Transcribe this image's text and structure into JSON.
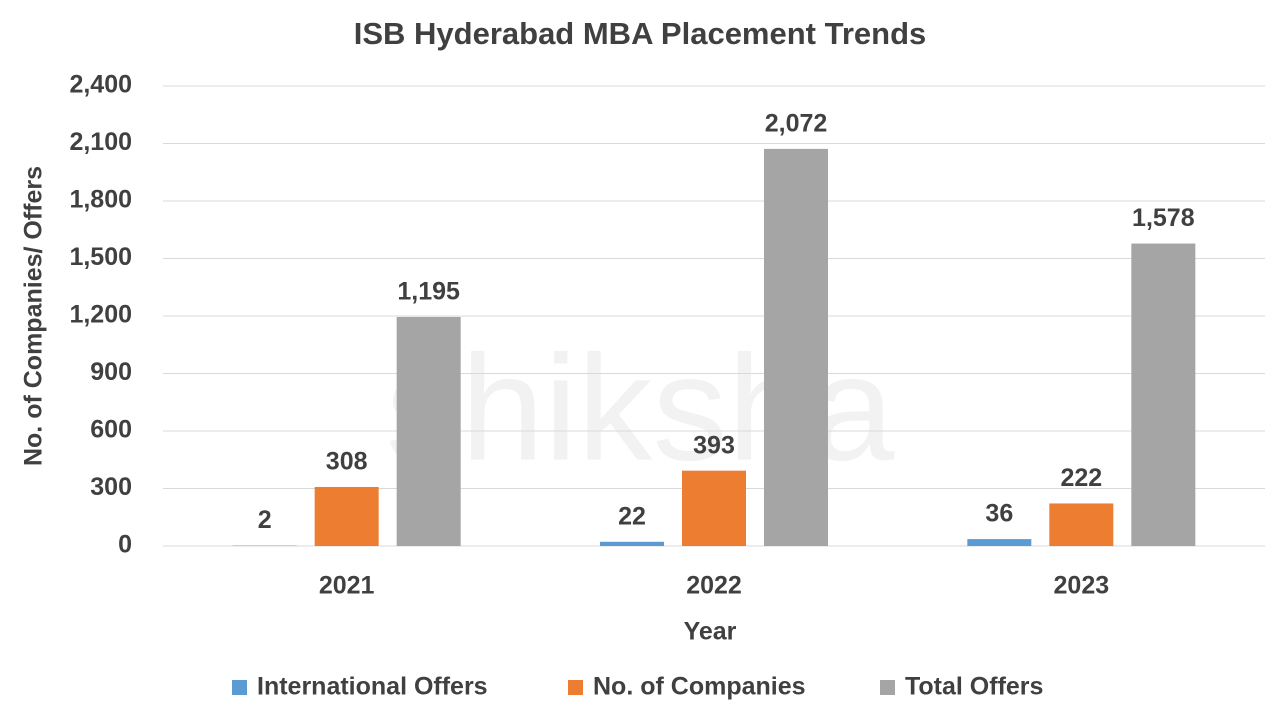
{
  "chart_data": {
    "type": "bar",
    "title": "ISB Hyderabad MBA Placement Trends",
    "watermark": "shiksha",
    "x_label": "Year",
    "y_label": "No. of Companies/ Offers",
    "categories": [
      "2021",
      "2022",
      "2023"
    ],
    "series": [
      {
        "name": "International Offers",
        "color": "#5b9bd5",
        "values": [
          2,
          22,
          36
        ]
      },
      {
        "name": "No. of Companies",
        "color": "#ed7d31",
        "values": [
          308,
          393,
          222
        ]
      },
      {
        "name": "Total Offers",
        "color": "#a5a5a5",
        "values": [
          1195,
          2072,
          1578
        ],
        "value_labels": [
          "1,195",
          "2,072",
          "1,578"
        ]
      }
    ],
    "ylim": [
      0,
      2400
    ],
    "yticks": [
      0,
      300,
      600,
      900,
      {
        "value": 1200,
        "label": "1,200"
      },
      {
        "value": 1500,
        "label": "1,500"
      },
      {
        "value": 1800,
        "label": "1,800"
      },
      {
        "value": 2100,
        "label": "2,100"
      },
      {
        "value": 2400,
        "label": "2,400"
      }
    ],
    "grid": true,
    "legend": "bottom"
  }
}
